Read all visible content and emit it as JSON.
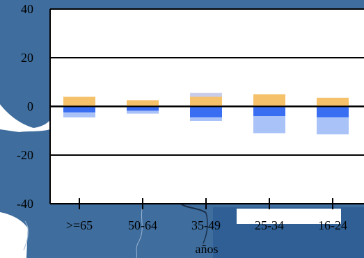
{
  "chart_data": {
    "type": "bar",
    "stacked": true,
    "title": "",
    "xlabel": "años",
    "ylabel": "",
    "ylim": [
      -40,
      40
    ],
    "yticks": [
      -40,
      -20,
      0,
      20,
      40
    ],
    "grid": true,
    "categories": [
      ">=65",
      "50-64",
      "35-49",
      "25-34",
      "16-24"
    ],
    "series": [
      {
        "name": "",
        "color": "#f5c26b",
        "values": [
          4,
          2.5,
          4,
          5,
          3.5
        ]
      },
      {
        "name": "",
        "color": "#c9cde8",
        "values": [
          0,
          0,
          1.5,
          0,
          0
        ]
      },
      {
        "name": "",
        "color": "#3a6ef2",
        "values": [
          -2.5,
          -1.8,
          -4.5,
          -4,
          -4.5
        ]
      },
      {
        "name": "",
        "color": "#a9c2f8",
        "values": [
          -2,
          -1.2,
          -1.5,
          -7,
          -7
        ]
      }
    ]
  },
  "colors": {
    "page_background": "#3f6e9e",
    "plot_background": "#ffffff",
    "land": "#3a6a9a"
  }
}
